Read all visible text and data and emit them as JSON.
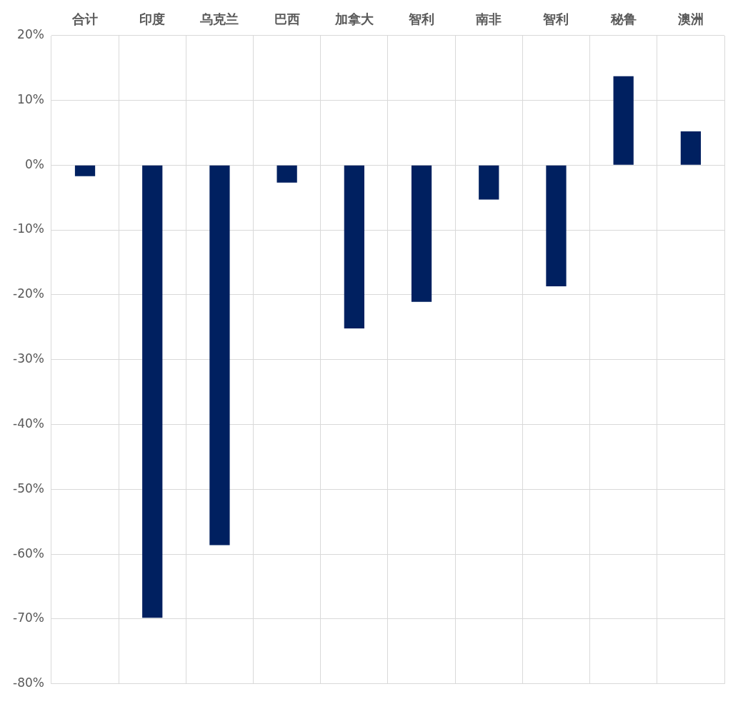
{
  "chart_data": {
    "type": "bar",
    "categories": [
      "合计",
      "印度",
      "乌克兰",
      "巴西",
      "加拿大",
      "智利",
      "南非",
      "智利",
      "秘鲁",
      "澳洲"
    ],
    "values": [
      -1.7,
      -69.8,
      -58.6,
      -2.7,
      -25.2,
      -21.1,
      -5.3,
      -18.7,
      13.7,
      5.2
    ],
    "color": "#002060",
    "ylim": [
      -80,
      20
    ],
    "yticks": [
      {
        "value": -80,
        "label": "-80%"
      },
      {
        "value": -70,
        "label": "-70%"
      },
      {
        "value": -60,
        "label": "-60%"
      },
      {
        "value": -50,
        "label": "-50%"
      },
      {
        "value": -40,
        "label": "-40%"
      },
      {
        "value": -30,
        "label": "-30%"
      },
      {
        "value": -20,
        "label": "-20%"
      },
      {
        "value": -10,
        "label": "-10%"
      },
      {
        "value": 0,
        "label": "0%"
      },
      {
        "value": 10,
        "label": "10%"
      },
      {
        "value": 20,
        "label": "20%"
      }
    ],
    "grid": true,
    "legend": false
  }
}
